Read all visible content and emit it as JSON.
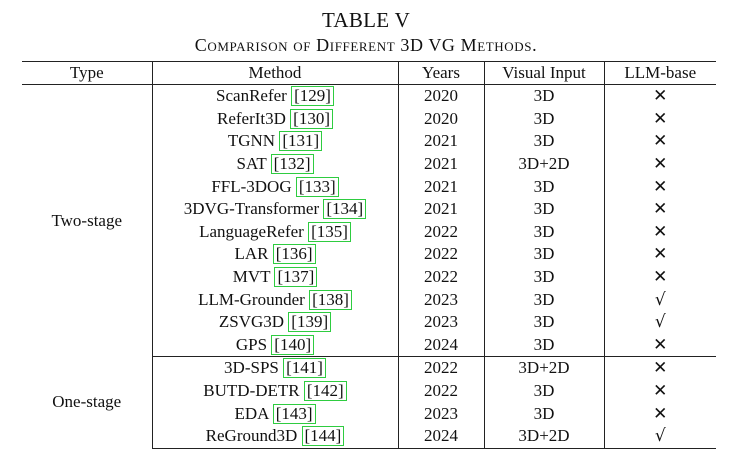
{
  "caption": {
    "label": "TABLE V",
    "title": "Comparison of Different 3D VG Methods."
  },
  "columns": [
    "Type",
    "Method",
    "Years",
    "Visual Input",
    "LLM-base"
  ],
  "groups": [
    {
      "type": "Two-stage",
      "rows": [
        {
          "method": "ScanRefer",
          "ref": "[129]",
          "year": "2020",
          "input": "3D",
          "llm": "✕"
        },
        {
          "method": "ReferIt3D",
          "ref": "[130]",
          "year": "2020",
          "input": "3D",
          "llm": "✕"
        },
        {
          "method": "TGNN",
          "ref": "[131]",
          "year": "2021",
          "input": "3D",
          "llm": "✕"
        },
        {
          "method": "SAT",
          "ref": "[132]",
          "year": "2021",
          "input": "3D+2D",
          "llm": "✕"
        },
        {
          "method": "FFL-3DOG",
          "ref": "[133]",
          "year": "2021",
          "input": "3D",
          "llm": "✕"
        },
        {
          "method": "3DVG-Transformer",
          "ref": "[134]",
          "year": "2021",
          "input": "3D",
          "llm": "✕"
        },
        {
          "method": "LanguageRefer",
          "ref": "[135]",
          "year": "2022",
          "input": "3D",
          "llm": "✕"
        },
        {
          "method": "LAR",
          "ref": "[136]",
          "year": "2022",
          "input": "3D",
          "llm": "✕"
        },
        {
          "method": "MVT",
          "ref": "[137]",
          "year": "2022",
          "input": "3D",
          "llm": "✕"
        },
        {
          "method": "LLM-Grounder",
          "ref": "[138]",
          "year": "2023",
          "input": "3D",
          "llm": "√"
        },
        {
          "method": "ZSVG3D",
          "ref": "[139]",
          "year": "2023",
          "input": "3D",
          "llm": "√"
        },
        {
          "method": "GPS",
          "ref": "[140]",
          "year": "2024",
          "input": "3D",
          "llm": "✕"
        }
      ]
    },
    {
      "type": "One-stage",
      "rows": [
        {
          "method": "3D-SPS",
          "ref": "[141]",
          "year": "2022",
          "input": "3D+2D",
          "llm": "✕"
        },
        {
          "method": "BUTD-DETR",
          "ref": "[142]",
          "year": "2022",
          "input": "3D",
          "llm": "✕"
        },
        {
          "method": "EDA",
          "ref": "[143]",
          "year": "2023",
          "input": "3D",
          "llm": "✕"
        },
        {
          "method": "ReGround3D",
          "ref": "[144]",
          "year": "2024",
          "input": "3D+2D",
          "llm": "√"
        }
      ]
    }
  ]
}
